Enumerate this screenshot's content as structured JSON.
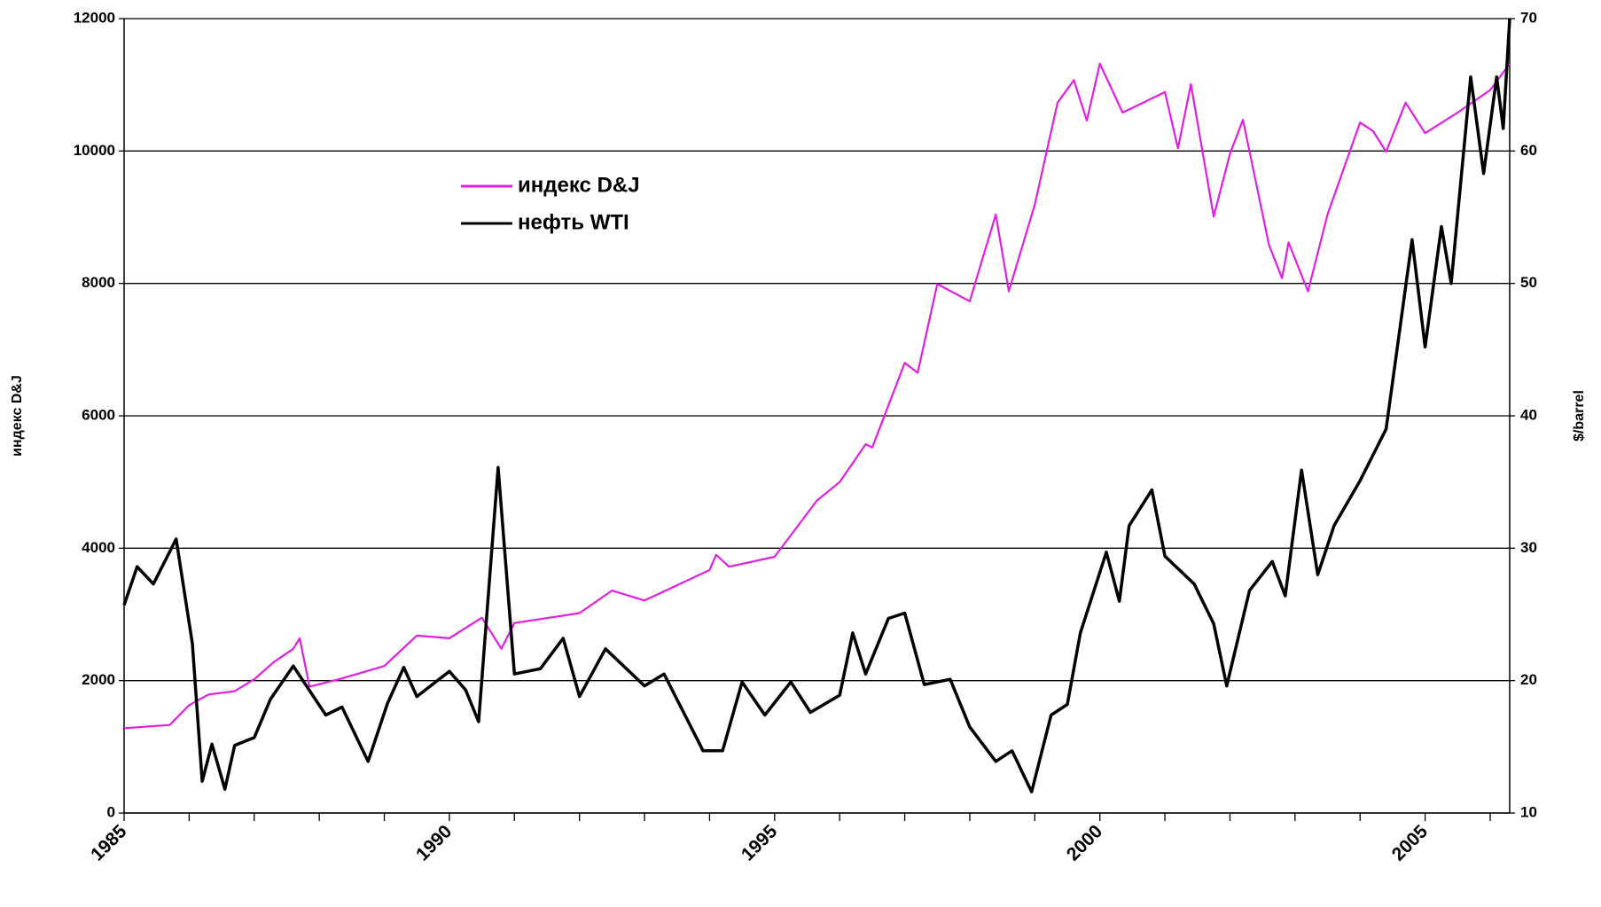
{
  "chart_data": {
    "type": "line",
    "ylabel": "индекс D&J",
    "y2label": "$/barrel",
    "xlim": [
      1985,
      2006.3
    ],
    "xticks": [
      1985,
      1990,
      1995,
      2000,
      2005
    ],
    "xminorticks": [
      1985,
      1986,
      1987,
      1988,
      1989,
      1990,
      1991,
      1992,
      1993,
      1994,
      1995,
      1996,
      1997,
      1998,
      1999,
      2000,
      2001,
      2002,
      2003,
      2004,
      2005,
      2006
    ],
    "ylim": [
      0,
      12000
    ],
    "yticks": [
      0,
      2000,
      4000,
      6000,
      8000,
      10000,
      12000
    ],
    "y2lim": [
      10,
      70
    ],
    "y2ticks": [
      10,
      20,
      30,
      40,
      50,
      60,
      70
    ],
    "grid": true,
    "legend": "upper left",
    "series": [
      {
        "name": "индекс D&J",
        "color": "#e020e0",
        "x": [
          1985.0,
          1985.7,
          1986.0,
          1986.3,
          1986.7,
          1987.0,
          1987.3,
          1987.6,
          1987.7,
          1987.85,
          1988.3,
          1989.0,
          1989.5,
          1990.0,
          1990.5,
          1990.8,
          1991.0,
          1992.0,
          1992.5,
          1993.0,
          1994.0,
          1994.1,
          1994.3,
          1995.0,
          1995.65,
          1996.0,
          1996.4,
          1996.5,
          1997.0,
          1997.2,
          1997.5,
          1998.0,
          1998.4,
          1998.6,
          1999.0,
          1999.35,
          1999.6,
          1999.8,
          2000.0,
          2000.35,
          2001.0,
          2001.2,
          2001.4,
          2001.75,
          2002.0,
          2002.2,
          2002.6,
          2002.8,
          2002.9,
          2003.2,
          2003.5,
          2004.0,
          2004.2,
          2004.4,
          2004.7,
          2005.0,
          2005.5,
          2006.0,
          2006.3
        ],
        "values": [
          1280,
          1330,
          1630,
          1790,
          1840,
          2020,
          2280,
          2480,
          2640,
          1910,
          2020,
          2220,
          2680,
          2640,
          2950,
          2480,
          2870,
          3020,
          3360,
          3210,
          3670,
          3900,
          3720,
          3870,
          4720,
          5000,
          5570,
          5520,
          6800,
          6650,
          7990,
          7730,
          9040,
          7880,
          9190,
          10730,
          11070,
          10460,
          11320,
          10580,
          10890,
          10040,
          11010,
          9010,
          9960,
          10470,
          8580,
          8080,
          8620,
          7880,
          9040,
          10430,
          10300,
          9990,
          10730,
          10270,
          10580,
          10920,
          11320
        ]
      },
      {
        "name": "нефть WTI",
        "color": "#000000",
        "axis": "y2",
        "x": [
          1985.0,
          1985.2,
          1985.45,
          1985.8,
          1986.05,
          1986.2,
          1986.35,
          1986.55,
          1986.7,
          1987.0,
          1987.25,
          1987.6,
          1988.1,
          1988.35,
          1988.75,
          1989.05,
          1989.3,
          1989.5,
          1990.0,
          1990.25,
          1990.45,
          1990.75,
          1991.0,
          1991.4,
          1991.75,
          1992.0,
          1992.4,
          1993.0,
          1993.3,
          1993.9,
          1994.2,
          1994.5,
          1994.85,
          1995.25,
          1995.55,
          1996.0,
          1996.2,
          1996.4,
          1996.75,
          1997.0,
          1997.3,
          1997.7,
          1998.0,
          1998.4,
          1998.65,
          1998.95,
          1999.25,
          1999.5,
          1999.7,
          2000.1,
          2000.3,
          2000.45,
          2000.8,
          2001.0,
          2001.45,
          2001.75,
          2001.95,
          2002.3,
          2002.65,
          2002.85,
          2003.1,
          2003.35,
          2003.6,
          2004.0,
          2004.4,
          2004.8,
          2005.0,
          2005.25,
          2005.4,
          2005.7,
          2005.9,
          2006.1,
          2006.2,
          2006.3
        ],
        "values": [
          25.7,
          28.6,
          27.3,
          30.7,
          22.8,
          12.4,
          15.2,
          11.8,
          15.1,
          15.7,
          18.6,
          21.1,
          17.4,
          18.0,
          13.9,
          18.3,
          21.0,
          18.8,
          20.7,
          19.3,
          16.9,
          36.1,
          20.5,
          20.9,
          23.2,
          18.8,
          22.4,
          19.6,
          20.5,
          14.7,
          14.7,
          19.9,
          17.4,
          19.9,
          17.6,
          18.9,
          23.6,
          20.5,
          24.7,
          25.1,
          19.7,
          20.1,
          16.5,
          13.9,
          14.7,
          11.6,
          17.4,
          18.2,
          23.6,
          29.7,
          26.0,
          31.7,
          34.4,
          29.4,
          27.3,
          24.3,
          19.6,
          26.8,
          29.0,
          26.4,
          35.9,
          28.0,
          31.7,
          35.1,
          39.0,
          53.3,
          45.2,
          54.3,
          50.0,
          65.6,
          58.3,
          65.6,
          61.7,
          70.0
        ]
      }
    ]
  }
}
